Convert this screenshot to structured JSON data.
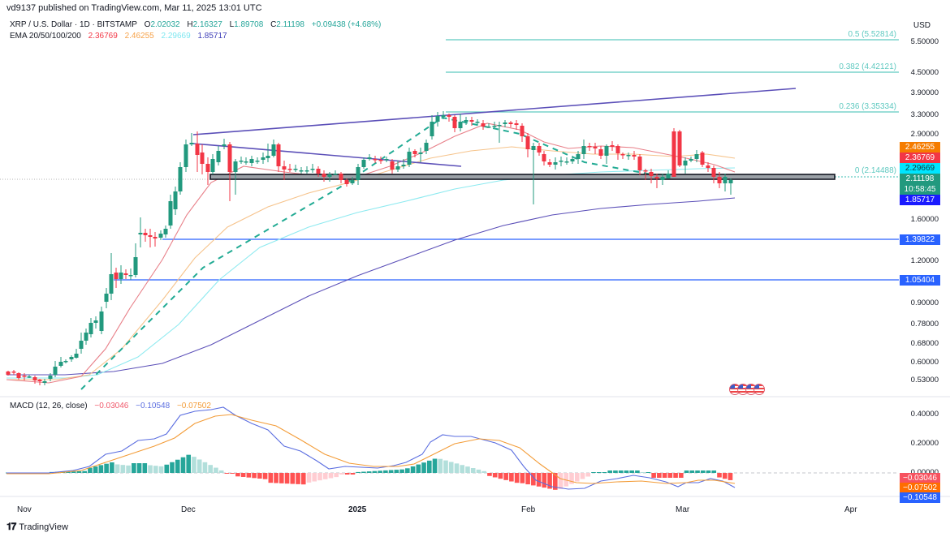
{
  "header": {
    "publisher": "vd9137 published on TradingView.com, Mar 11, 2025 13:01 UTC",
    "symbol": "XRP / U.S. Dollar · 1D · BITSTAMP",
    "open_label": "O",
    "open": "2.02032",
    "high_label": "H",
    "high": "2.16327",
    "low_label": "L",
    "low": "1.89708",
    "close_label": "C",
    "close": "2.11198",
    "change": "+0.09438 (+4.68%)",
    "ema_label": "EMA 20/50/100/200",
    "ema20": "2.36769",
    "ema50": "2.46255",
    "ema100": "2.29669",
    "ema200": "1.85717"
  },
  "macd_legend": {
    "label": "MACD (12, 26, close)",
    "histogram": "−0.03046",
    "macd": "−0.10548",
    "signal": "−0.07502"
  },
  "price_axis": {
    "currency": "USD",
    "ticks": [
      "5.50000",
      "4.50000",
      "3.90000",
      "3.30000",
      "2.90000",
      "1.60000",
      "1.20000",
      "0.90000",
      "0.78000",
      "0.68000",
      "0.60000",
      "0.53000"
    ]
  },
  "price_tags": [
    {
      "value": "2.46255",
      "color": "#f57c00"
    },
    {
      "value": "2.36769",
      "color": "#f23645"
    },
    {
      "value": "2.29669",
      "color": "#00e5ff"
    },
    {
      "value": "2.11198",
      "color": "#22997e"
    },
    {
      "value": "10:58:45",
      "color": "#22997e"
    },
    {
      "value": "1.85717",
      "color": "#1a1aff"
    },
    {
      "value": "1.39822",
      "color": "#2962ff"
    },
    {
      "value": "1.05404",
      "color": "#2962ff"
    }
  ],
  "fib_levels": [
    {
      "label": "0.5 (5.52814)"
    },
    {
      "label": "0.382 (4.42121)"
    },
    {
      "label": "0.236 (3.35334)"
    },
    {
      "label": "0 (2.14488)"
    }
  ],
  "macd_axis": {
    "ticks": [
      "0.40000",
      "0.20000",
      "0.00000"
    ],
    "tags": [
      {
        "value": "−0.03046",
        "color": "#f7525f"
      },
      {
        "value": "−0.07502",
        "color": "#ff6d00"
      },
      {
        "value": "−0.10548",
        "color": "#2962ff"
      }
    ]
  },
  "time_axis": [
    "Nov",
    "Dec",
    "2025",
    "Feb",
    "Mar",
    "Apr"
  ],
  "brand": "TradingView",
  "chart_data": [
    {
      "type": "candlestick",
      "title": "XRP / U.S. Dollar · 1D · BITSTAMP",
      "xlabel": "",
      "ylabel": "USD",
      "x_ticks": [
        "Nov",
        "Dec",
        "2025",
        "Feb",
        "Mar",
        "Apr"
      ],
      "y_ticks": [
        5.5,
        4.5,
        3.9,
        3.3,
        2.9,
        1.6,
        1.2,
        0.9,
        0.78,
        0.68,
        0.6,
        0.53
      ],
      "ylim": [
        0.5,
        6.0
      ],
      "last": {
        "open": 2.02032,
        "high": 2.16327,
        "low": 1.89708,
        "close": 2.11198,
        "change": 0.09438,
        "change_pct": 4.68
      },
      "ema": {
        "ema20": 2.36769,
        "ema50": 2.46255,
        "ema100": 2.29669,
        "ema200": 1.85717
      },
      "horizontal_levels": [
        1.39822,
        1.05404
      ],
      "support_zone": 2.14488,
      "fibonacci": [
        {
          "level": 0,
          "price": 2.14488
        },
        {
          "level": 0.236,
          "price": 3.35334
        },
        {
          "level": 0.382,
          "price": 4.42121
        },
        {
          "level": 0.5,
          "price": 5.52814
        }
      ],
      "approx_monthly_closes": [
        {
          "date": "Nov 1",
          "close": 0.52
        },
        {
          "date": "Nov 15",
          "close": 0.85
        },
        {
          "date": "Dec 3",
          "close": 2.6
        },
        {
          "date": "Dec 31",
          "close": 2.08
        },
        {
          "date": "Jan 16",
          "close": 3.3
        },
        {
          "date": "Feb 3",
          "close": 2.55
        },
        {
          "date": "Mar 2",
          "close": 2.95
        },
        {
          "date": "Mar 11",
          "close": 2.11
        }
      ]
    },
    {
      "type": "line",
      "title": "MACD (12, 26, close)",
      "series": [
        {
          "name": "Histogram",
          "last": -0.03046
        },
        {
          "name": "MACD",
          "last": -0.10548
        },
        {
          "name": "Signal",
          "last": -0.07502
        }
      ],
      "y_ticks": [
        0.4,
        0.2,
        0.0
      ],
      "ylim": [
        -0.15,
        0.45
      ]
    }
  ]
}
